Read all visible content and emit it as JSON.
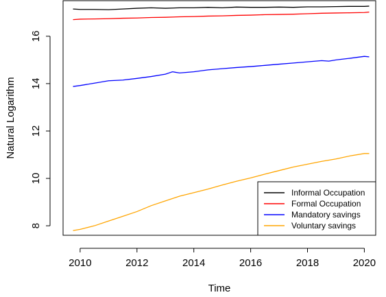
{
  "chart_data": {
    "type": "line",
    "title": "",
    "xlabel": "Time",
    "ylabel": "Natural Logarithm",
    "xlim": [
      2009.4,
      2020.4
    ],
    "ylim": [
      7.6,
      17.5
    ],
    "xticks": [
      2010,
      2012,
      2014,
      2016,
      2018,
      2020
    ],
    "yticks": [
      8,
      10,
      12,
      14,
      16
    ],
    "grid": false,
    "legend_position": "bottom-right",
    "series": [
      {
        "name": "Informal Occupation",
        "color": "#000000",
        "x": [
          2009.75,
          2010.0,
          2010.5,
          2011.0,
          2011.5,
          2012.0,
          2012.5,
          2013.0,
          2013.5,
          2014.0,
          2014.5,
          2015.0,
          2015.5,
          2016.0,
          2016.5,
          2017.0,
          2017.5,
          2018.0,
          2018.5,
          2019.0,
          2019.5,
          2020.0,
          2020.17
        ],
        "y": [
          17.15,
          17.13,
          17.13,
          17.12,
          17.15,
          17.18,
          17.2,
          17.18,
          17.2,
          17.2,
          17.22,
          17.2,
          17.23,
          17.22,
          17.22,
          17.23,
          17.22,
          17.24,
          17.24,
          17.25,
          17.26,
          17.26,
          17.27
        ]
      },
      {
        "name": "Formal Occupation",
        "color": "#ff0000",
        "x": [
          2009.75,
          2010.0,
          2010.5,
          2011.0,
          2011.5,
          2012.0,
          2012.5,
          2013.0,
          2013.5,
          2014.0,
          2014.5,
          2015.0,
          2015.5,
          2016.0,
          2016.5,
          2017.0,
          2017.5,
          2018.0,
          2018.5,
          2019.0,
          2019.5,
          2020.0,
          2020.17
        ],
        "y": [
          16.7,
          16.72,
          16.73,
          16.74,
          16.76,
          16.77,
          16.79,
          16.8,
          16.82,
          16.83,
          16.85,
          16.86,
          16.88,
          16.89,
          16.91,
          16.92,
          16.93,
          16.95,
          16.97,
          16.98,
          16.99,
          17.0,
          17.02
        ]
      },
      {
        "name": "Mandatory savings",
        "color": "#0000ff",
        "x": [
          2009.75,
          2010.0,
          2010.5,
          2011.0,
          2011.5,
          2012.0,
          2012.5,
          2013.0,
          2013.25,
          2013.5,
          2014.0,
          2014.5,
          2015.0,
          2015.5,
          2016.0,
          2016.5,
          2017.0,
          2017.5,
          2018.0,
          2018.5,
          2018.75,
          2019.0,
          2019.5,
          2020.0,
          2020.17
        ],
        "y": [
          13.88,
          13.92,
          14.02,
          14.12,
          14.15,
          14.22,
          14.3,
          14.4,
          14.5,
          14.45,
          14.5,
          14.58,
          14.63,
          14.68,
          14.72,
          14.77,
          14.82,
          14.87,
          14.92,
          14.97,
          14.95,
          15.0,
          15.07,
          15.15,
          15.13
        ]
      },
      {
        "name": "Voluntary savings",
        "color": "#ffa500",
        "x": [
          2009.75,
          2010.0,
          2010.5,
          2011.0,
          2011.5,
          2012.0,
          2012.5,
          2013.0,
          2013.5,
          2014.0,
          2014.5,
          2015.0,
          2015.5,
          2016.0,
          2016.5,
          2017.0,
          2017.5,
          2018.0,
          2018.5,
          2019.0,
          2019.5,
          2020.0,
          2020.17
        ],
        "y": [
          7.8,
          7.85,
          8.0,
          8.2,
          8.4,
          8.6,
          8.85,
          9.05,
          9.25,
          9.4,
          9.55,
          9.72,
          9.88,
          10.02,
          10.18,
          10.33,
          10.48,
          10.6,
          10.72,
          10.82,
          10.95,
          11.05,
          11.05
        ]
      }
    ]
  }
}
